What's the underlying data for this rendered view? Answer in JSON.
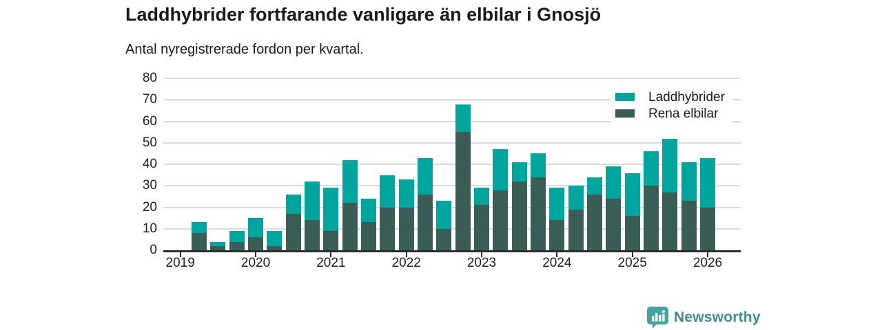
{
  "header": {
    "title": "Laddhybrider fortfarande vanligare än elbilar i Gnosjö",
    "subtitle": "Antal nyregistrerade fordon per kvartal."
  },
  "chart_data": {
    "type": "bar",
    "stacked": true,
    "title": "Laddhybrider fortfarande vanligare än elbilar i Gnosjö",
    "subtitle": "Antal nyregistrerade fordon per kvartal.",
    "xlabel": "",
    "ylabel": "",
    "ylim": [
      0,
      80
    ],
    "yticks": [
      0,
      10,
      20,
      30,
      40,
      50,
      60,
      70,
      80
    ],
    "grid": "horizontal",
    "legend_position": "top-right",
    "x": [
      "2019 Q1",
      "2019 Q2",
      "2019 Q3",
      "2019 Q4",
      "2020 Q1",
      "2020 Q2",
      "2020 Q3",
      "2020 Q4",
      "2021 Q1",
      "2021 Q2",
      "2021 Q3",
      "2021 Q4",
      "2022 Q1",
      "2022 Q2",
      "2022 Q3",
      "2022 Q4",
      "2023 Q1",
      "2023 Q2",
      "2023 Q3",
      "2023 Q4",
      "2024 Q1",
      "2024 Q2",
      "2024 Q3",
      "2024 Q4",
      "2025 Q1",
      "2025 Q2",
      "2025 Q3",
      "2025 Q4",
      "2026 Q1"
    ],
    "year_tick_labels": [
      "2019",
      "2020",
      "2021",
      "2022",
      "2023",
      "2024",
      "2025",
      "2026"
    ],
    "series": [
      {
        "name": "Laddhybrider",
        "color": "#00a69e",
        "stack_order": "top",
        "values": [
          0,
          5,
          2,
          5,
          9,
          7,
          9,
          18,
          20,
          20,
          11,
          15,
          13,
          17,
          13,
          13,
          8,
          19,
          9,
          11,
          15,
          11,
          8,
          15,
          20,
          16,
          25,
          18,
          23
        ]
      },
      {
        "name": "Rena elbilar",
        "color": "#3a5e57",
        "stack_order": "bottom",
        "values": [
          0,
          8,
          2,
          4,
          6,
          2,
          17,
          14,
          9,
          22,
          13,
          20,
          20,
          26,
          10,
          55,
          21,
          28,
          32,
          34,
          14,
          19,
          26,
          24,
          16,
          30,
          27,
          23,
          20
        ]
      }
    ],
    "stack_totals": [
      0,
      13,
      4,
      9,
      15,
      9,
      26,
      32,
      29,
      42,
      24,
      35,
      33,
      43,
      23,
      68,
      29,
      47,
      41,
      45,
      29,
      30,
      34,
      39,
      36,
      46,
      52,
      41,
      43
    ]
  },
  "footer": {
    "brand": "Newsworthy"
  },
  "colors": {
    "laddhybrider": "#00a69e",
    "rena_elbilar": "#3a5e57",
    "gridline": "#dcdcdc",
    "axis": "#2b2b2b",
    "brand_teal": "#3d8e8d",
    "logo_fill": "#46a4a0"
  }
}
